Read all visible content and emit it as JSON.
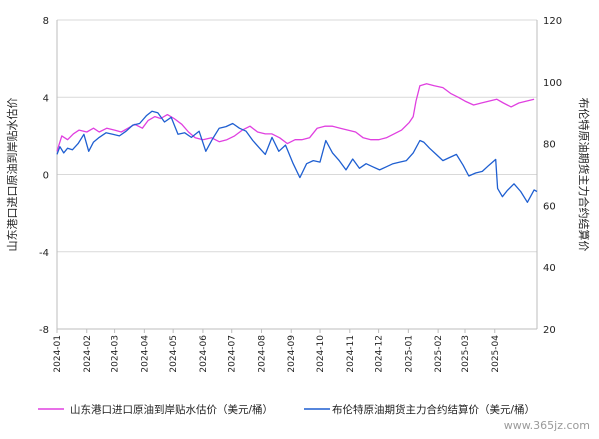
{
  "chart_data": {
    "type": "line",
    "y_left": {
      "label": "山东港口进口原油到岸贴水估价",
      "range": [
        -8,
        8
      ],
      "ticks": [
        -8,
        -4,
        0,
        4,
        8
      ]
    },
    "y_right": {
      "label": "布伦特原油期货主力合约结算价",
      "range": [
        20,
        120
      ],
      "ticks": [
        20,
        40,
        60,
        80,
        100,
        120
      ]
    },
    "x_axis": {
      "range": [
        "2024-01-01",
        "2025-05-15"
      ],
      "ticks": [
        "2024-01",
        "2024-02",
        "2024-03",
        "2024-04",
        "2024-05",
        "2024-06",
        "2024-07",
        "2024-08",
        "2024-09",
        "2024-10",
        "2024-11",
        "2024-12",
        "2025-01",
        "2025-02",
        "2025-03",
        "2025-04"
      ]
    },
    "grid": true,
    "legend_position": "bottom",
    "series": [
      {
        "name": "山东港口进口原油到岸贴水估价（美元/桶）",
        "axis": "left",
        "color": "#e040e0",
        "points": [
          [
            "2024-01-01",
            1.2
          ],
          [
            "2024-01-06",
            2.0
          ],
          [
            "2024-01-12",
            1.8
          ],
          [
            "2024-01-18",
            2.1
          ],
          [
            "2024-01-24",
            2.3
          ],
          [
            "2024-02-01",
            2.2
          ],
          [
            "2024-02-08",
            2.4
          ],
          [
            "2024-02-14",
            2.2
          ],
          [
            "2024-02-22",
            2.4
          ],
          [
            "2024-03-01",
            2.3
          ],
          [
            "2024-03-08",
            2.2
          ],
          [
            "2024-03-15",
            2.4
          ],
          [
            "2024-03-22",
            2.6
          ],
          [
            "2024-03-30",
            2.4
          ],
          [
            "2024-04-05",
            2.8
          ],
          [
            "2024-04-12",
            3.0
          ],
          [
            "2024-04-18",
            2.9
          ],
          [
            "2024-04-25",
            3.1
          ],
          [
            "2024-05-02",
            2.9
          ],
          [
            "2024-05-10",
            2.6
          ],
          [
            "2024-05-17",
            2.2
          ],
          [
            "2024-05-24",
            1.9
          ],
          [
            "2024-06-01",
            1.8
          ],
          [
            "2024-06-10",
            1.9
          ],
          [
            "2024-06-18",
            1.7
          ],
          [
            "2024-06-26",
            1.8
          ],
          [
            "2024-07-04",
            2.0
          ],
          [
            "2024-07-12",
            2.3
          ],
          [
            "2024-07-20",
            2.5
          ],
          [
            "2024-07-28",
            2.2
          ],
          [
            "2024-08-05",
            2.1
          ],
          [
            "2024-08-12",
            2.1
          ],
          [
            "2024-08-20",
            1.9
          ],
          [
            "2024-08-28",
            1.6
          ],
          [
            "2024-09-05",
            1.8
          ],
          [
            "2024-09-12",
            1.8
          ],
          [
            "2024-09-20",
            1.9
          ],
          [
            "2024-09-28",
            2.4
          ],
          [
            "2024-10-06",
            2.5
          ],
          [
            "2024-10-14",
            2.5
          ],
          [
            "2024-10-22",
            2.4
          ],
          [
            "2024-10-30",
            2.3
          ],
          [
            "2024-11-07",
            2.2
          ],
          [
            "2024-11-15",
            1.9
          ],
          [
            "2024-11-23",
            1.8
          ],
          [
            "2024-12-01",
            1.8
          ],
          [
            "2024-12-09",
            1.9
          ],
          [
            "2024-12-17",
            2.1
          ],
          [
            "2024-12-25",
            2.3
          ],
          [
            "2025-01-02",
            2.7
          ],
          [
            "2025-01-06",
            3.0
          ],
          [
            "2025-01-09",
            3.8
          ],
          [
            "2025-01-13",
            4.6
          ],
          [
            "2025-01-20",
            4.7
          ],
          [
            "2025-01-28",
            4.6
          ],
          [
            "2025-02-06",
            4.5
          ],
          [
            "2025-02-14",
            4.2
          ],
          [
            "2025-02-22",
            4.0
          ],
          [
            "2025-03-01",
            3.8
          ],
          [
            "2025-03-10",
            3.6
          ],
          [
            "2025-03-18",
            3.7
          ],
          [
            "2025-03-26",
            3.8
          ],
          [
            "2025-04-03",
            3.9
          ],
          [
            "2025-04-10",
            3.7
          ],
          [
            "2025-04-18",
            3.5
          ],
          [
            "2025-04-26",
            3.7
          ],
          [
            "2025-05-04",
            3.8
          ],
          [
            "2025-05-12",
            3.9
          ]
        ]
      },
      {
        "name": "布伦特原油期货主力合约结算价（美元/桶）",
        "axis": "right",
        "color": "#1f5fd1",
        "points": [
          [
            "2024-01-01",
            76.5
          ],
          [
            "2024-01-04",
            79.0
          ],
          [
            "2024-01-08",
            77.0
          ],
          [
            "2024-01-12",
            78.5
          ],
          [
            "2024-01-17",
            78.0
          ],
          [
            "2024-01-23",
            80.0
          ],
          [
            "2024-01-29",
            83.0
          ],
          [
            "2024-02-03",
            77.5
          ],
          [
            "2024-02-08",
            80.5
          ],
          [
            "2024-02-14",
            82.0
          ],
          [
            "2024-02-21",
            83.5
          ],
          [
            "2024-02-28",
            83.0
          ],
          [
            "2024-03-06",
            82.5
          ],
          [
            "2024-03-13",
            84.0
          ],
          [
            "2024-03-20",
            86.0
          ],
          [
            "2024-03-27",
            86.5
          ],
          [
            "2024-04-03",
            89.0
          ],
          [
            "2024-04-09",
            90.5
          ],
          [
            "2024-04-15",
            90.0
          ],
          [
            "2024-04-22",
            87.0
          ],
          [
            "2024-04-29",
            88.5
          ],
          [
            "2024-05-06",
            83.0
          ],
          [
            "2024-05-13",
            83.5
          ],
          [
            "2024-05-20",
            82.0
          ],
          [
            "2024-05-28",
            84.0
          ],
          [
            "2024-06-04",
            77.5
          ],
          [
            "2024-06-11",
            81.5
          ],
          [
            "2024-06-18",
            85.0
          ],
          [
            "2024-06-25",
            85.5
          ],
          [
            "2024-07-02",
            86.5
          ],
          [
            "2024-07-09",
            85.0
          ],
          [
            "2024-07-16",
            84.0
          ],
          [
            "2024-07-23",
            81.0
          ],
          [
            "2024-07-30",
            78.5
          ],
          [
            "2024-08-05",
            76.5
          ],
          [
            "2024-08-12",
            82.0
          ],
          [
            "2024-08-19",
            77.5
          ],
          [
            "2024-08-26",
            79.5
          ],
          [
            "2024-09-03",
            73.5
          ],
          [
            "2024-09-10",
            69.0
          ],
          [
            "2024-09-17",
            73.5
          ],
          [
            "2024-09-24",
            74.5
          ],
          [
            "2024-10-01",
            74.0
          ],
          [
            "2024-10-07",
            81.0
          ],
          [
            "2024-10-14",
            77.0
          ],
          [
            "2024-10-21",
            74.5
          ],
          [
            "2024-10-28",
            71.5
          ],
          [
            "2024-11-04",
            75.0
          ],
          [
            "2024-11-11",
            72.0
          ],
          [
            "2024-11-18",
            73.5
          ],
          [
            "2024-11-25",
            72.5
          ],
          [
            "2024-12-02",
            71.5
          ],
          [
            "2024-12-09",
            72.5
          ],
          [
            "2024-12-16",
            73.5
          ],
          [
            "2024-12-23",
            74.0
          ],
          [
            "2024-12-30",
            74.5
          ],
          [
            "2025-01-06",
            77.0
          ],
          [
            "2025-01-13",
            81.0
          ],
          [
            "2025-01-17",
            80.5
          ],
          [
            "2025-01-23",
            78.5
          ],
          [
            "2025-01-30",
            76.5
          ],
          [
            "2025-02-06",
            74.5
          ],
          [
            "2025-02-13",
            75.5
          ],
          [
            "2025-02-20",
            76.5
          ],
          [
            "2025-02-27",
            73.0
          ],
          [
            "2025-03-05",
            69.5
          ],
          [
            "2025-03-12",
            70.5
          ],
          [
            "2025-03-19",
            71.0
          ],
          [
            "2025-03-26",
            73.0
          ],
          [
            "2025-04-02",
            74.9
          ],
          [
            "2025-04-04",
            65.5
          ],
          [
            "2025-04-09",
            62.8
          ],
          [
            "2025-04-14",
            64.8
          ],
          [
            "2025-04-21",
            67.0
          ],
          [
            "2025-04-28",
            64.5
          ],
          [
            "2025-05-05",
            61.0
          ],
          [
            "2025-05-12",
            65.0
          ],
          [
            "2025-05-15",
            64.5
          ]
        ]
      }
    ]
  },
  "watermark": "www.365jz.com"
}
